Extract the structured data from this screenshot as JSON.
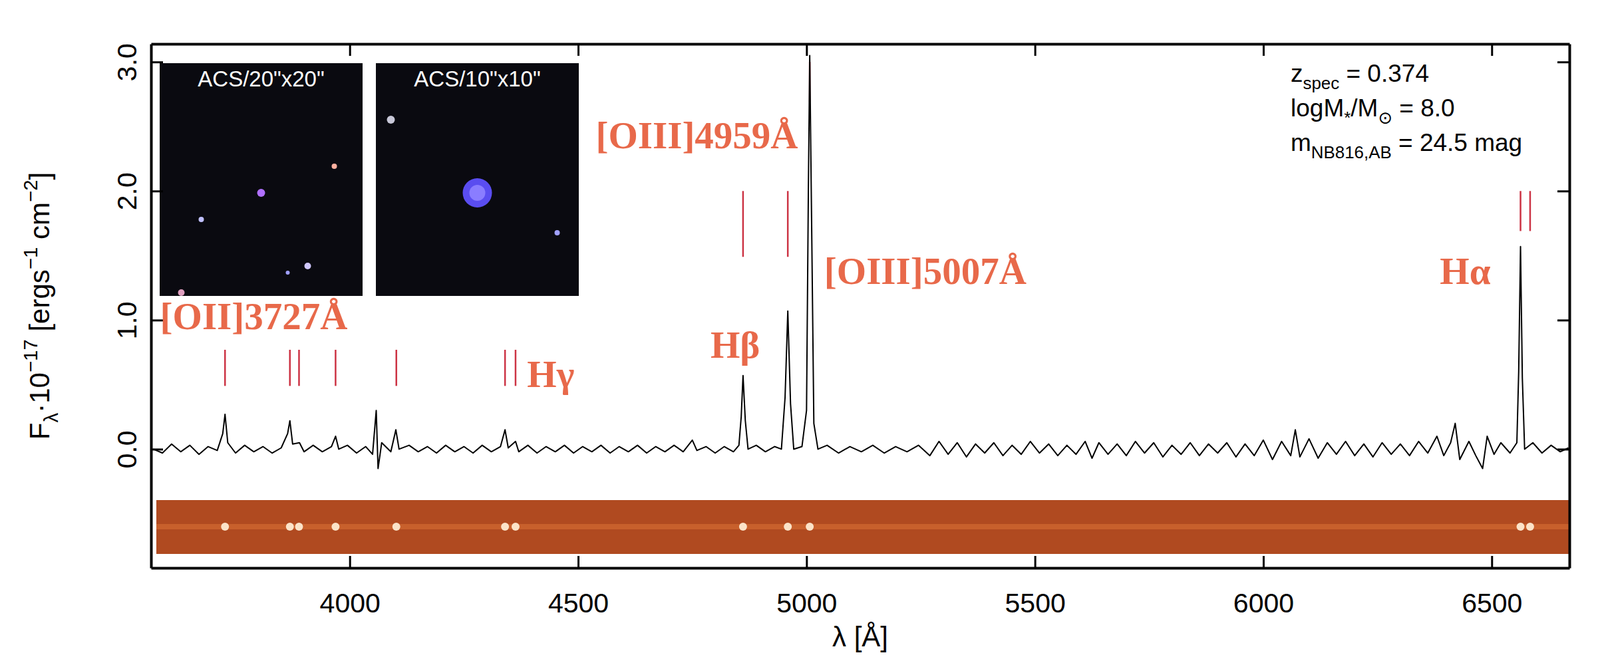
{
  "chart_data": {
    "type": "line",
    "xlabel": "λ [Å]",
    "ylabel": [
      {
        "text": "F"
      },
      {
        "sub": "λ"
      },
      {
        "text": "·10"
      },
      {
        "sup": "−17"
      },
      {
        "text": " [ergs"
      },
      {
        "sup": "−1"
      },
      {
        "text": " cm"
      },
      {
        "sup": "−2"
      },
      {
        "text": "]"
      }
    ],
    "xlim": [
      3565,
      6670
    ],
    "ylim": [
      -0.92,
      3.14
    ],
    "xticks": [
      4000,
      4500,
      5000,
      5500,
      6000,
      6500
    ],
    "yticks": [
      {
        "value": 0,
        "label": "0.0"
      },
      {
        "value": 1,
        "label": "1.0"
      },
      {
        "value": 2,
        "label": "2.0"
      },
      {
        "value": 3,
        "label": "3.0"
      }
    ],
    "x": [
      3570,
      3590,
      3610,
      3630,
      3650,
      3670,
      3690,
      3710,
      3722,
      3727,
      3733,
      3750,
      3770,
      3790,
      3810,
      3830,
      3850,
      3864,
      3869,
      3875,
      3890,
      3900,
      3920,
      3940,
      3960,
      3969,
      3976,
      3995,
      4015,
      4035,
      4050,
      4058,
      4062,
      4070,
      4090,
      4101,
      4108,
      4130,
      4150,
      4170,
      4190,
      4210,
      4230,
      4250,
      4270,
      4290,
      4310,
      4330,
      4340,
      4347,
      4363,
      4370,
      4390,
      4410,
      4430,
      4450,
      4470,
      4490,
      4510,
      4530,
      4550,
      4570,
      4590,
      4610,
      4630,
      4650,
      4670,
      4690,
      4710,
      4730,
      4750,
      4760,
      4780,
      4800,
      4820,
      4840,
      4852,
      4857,
      4861,
      4866,
      4872,
      4890,
      4910,
      4930,
      4945,
      4953,
      4959,
      4965,
      4972,
      4990,
      5000,
      5004,
      5007,
      5011,
      5016,
      5025,
      5045,
      5070,
      5095,
      5120,
      5145,
      5170,
      5195,
      5220,
      5245,
      5270,
      5290,
      5310,
      5330,
      5350,
      5370,
      5390,
      5410,
      5430,
      5450,
      5470,
      5490,
      5510,
      5530,
      5550,
      5570,
      5590,
      5610,
      5625,
      5640,
      5660,
      5680,
      5700,
      5720,
      5740,
      5760,
      5780,
      5800,
      5820,
      5840,
      5860,
      5880,
      5900,
      5920,
      5940,
      5960,
      5980,
      6000,
      6020,
      6040,
      6060,
      6070,
      6080,
      6100,
      6120,
      6140,
      6160,
      6180,
      6200,
      6220,
      6240,
      6260,
      6280,
      6300,
      6320,
      6340,
      6360,
      6380,
      6395,
      6410,
      6420,
      6430,
      6450,
      6465,
      6480,
      6490,
      6505,
      6520,
      6540,
      6555,
      6559,
      6563,
      6567,
      6572,
      6590,
      6610,
      6630,
      6650,
      6668
    ],
    "series": [
      {
        "color": "#000000",
        "values": [
          0.0,
          -0.03,
          0.04,
          -0.02,
          0.03,
          -0.04,
          0.02,
          -0.01,
          0.12,
          0.27,
          0.05,
          -0.03,
          0.03,
          -0.02,
          0.02,
          -0.03,
          0.01,
          0.12,
          0.22,
          0.04,
          0.05,
          -0.02,
          0.03,
          -0.02,
          0.02,
          0.1,
          0.0,
          0.03,
          -0.03,
          0.02,
          -0.04,
          0.3,
          -0.15,
          0.05,
          -0.02,
          0.15,
          0.0,
          0.03,
          -0.02,
          0.02,
          -0.03,
          0.03,
          -0.02,
          0.02,
          -0.03,
          0.03,
          -0.02,
          0.02,
          0.15,
          0.01,
          0.06,
          -0.02,
          0.03,
          -0.03,
          0.02,
          -0.02,
          0.03,
          -0.03,
          0.02,
          -0.02,
          0.03,
          -0.03,
          0.02,
          -0.02,
          0.03,
          -0.03,
          0.02,
          -0.02,
          0.03,
          -0.02,
          0.07,
          -0.01,
          0.02,
          -0.03,
          0.02,
          -0.02,
          0.03,
          0.25,
          0.57,
          0.22,
          0.0,
          0.03,
          -0.02,
          0.02,
          0.0,
          0.4,
          1.07,
          0.35,
          0.0,
          0.02,
          0.3,
          2.0,
          3.05,
          1.8,
          0.2,
          0.0,
          0.03,
          -0.03,
          0.02,
          -0.02,
          0.03,
          -0.03,
          0.02,
          -0.02,
          0.03,
          -0.05,
          0.06,
          -0.04,
          0.05,
          -0.06,
          0.04,
          -0.03,
          0.05,
          -0.05,
          0.03,
          -0.04,
          0.06,
          -0.03,
          0.04,
          -0.05,
          0.03,
          -0.04,
          0.06,
          -0.07,
          0.05,
          -0.04,
          0.04,
          -0.05,
          0.06,
          -0.03,
          0.05,
          -0.06,
          0.03,
          -0.04,
          0.05,
          -0.05,
          0.04,
          -0.03,
          0.05,
          -0.06,
          0.04,
          -0.05,
          0.07,
          -0.08,
          0.06,
          -0.05,
          0.15,
          -0.06,
          0.08,
          -0.07,
          0.05,
          -0.04,
          0.06,
          -0.05,
          0.04,
          -0.06,
          0.05,
          -0.04,
          0.04,
          -0.05,
          0.06,
          -0.03,
          0.1,
          -0.05,
          0.05,
          0.2,
          -0.08,
          0.06,
          -0.05,
          -0.15,
          0.1,
          -0.04,
          0.05,
          -0.03,
          0.05,
          0.6,
          1.57,
          0.55,
          0.0,
          0.05,
          -0.03,
          0.03,
          -0.02,
          0.01
        ]
      }
    ],
    "line_markers": {
      "color": "#cc3344",
      "x": [
        3727,
        3869,
        3889,
        3969,
        4102,
        4340,
        4363,
        4861,
        4959,
        5007,
        6563,
        6584
      ],
      "ymin": [
        0.49,
        0.49,
        0.49,
        0.49,
        0.49,
        0.49,
        0.49,
        1.49,
        1.49,
        2.69,
        1.69,
        1.69
      ],
      "ymax": [
        0.77,
        0.77,
        0.77,
        0.77,
        0.77,
        0.77,
        0.77,
        2.0,
        2.0,
        3.0,
        2.0,
        2.0
      ]
    },
    "annotations": [
      {
        "text": "[OII]3727Å",
        "x": 3790,
        "y": 1.03,
        "color": "#e8694a"
      },
      {
        "text": "Hγ",
        "x": 4440,
        "y": 0.58,
        "color": "#e8694a"
      },
      {
        "text": "Hβ",
        "x": 4844,
        "y": 0.81,
        "color": "#e8694a"
      },
      {
        "text": "[OIII]4959Å",
        "x": 4760,
        "y": 2.43,
        "color": "#e8694a"
      },
      {
        "text": "[OIII]5007Å",
        "x": 5260,
        "y": 1.38,
        "color": "#e8694a"
      },
      {
        "text": "Hα",
        "x": 6442,
        "y": 1.38,
        "color": "#e8694a"
      }
    ],
    "info": [
      [
        {
          "text": "z"
        },
        {
          "sub": "spec"
        },
        {
          "text": " = 0.374"
        }
      ],
      [
        {
          "text": "logM"
        },
        {
          "sub": "*"
        },
        {
          "text": "/M"
        },
        {
          "sub": "⊙"
        },
        {
          "text": " = 8.0"
        }
      ],
      [
        {
          "text": "m"
        },
        {
          "sub": "NB816,AB"
        },
        {
          "text": " = 24.5 mag"
        }
      ]
    ],
    "insets": [
      {
        "label": "ACS/20\"x20\""
      },
      {
        "label": "ACS/10\"x10\""
      }
    ]
  }
}
